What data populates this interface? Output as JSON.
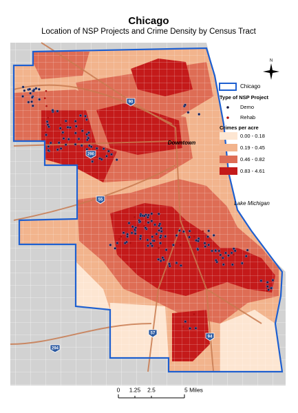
{
  "header": {
    "title": "Chicago",
    "subtitle": "Location of NSP Projects and Crime Density by Census Tract"
  },
  "legend": {
    "boundary": "Chicago",
    "project_title": "Type of NSP Project",
    "projects": [
      "Demo",
      "Rehab"
    ],
    "crime_title": "Crimes per acre",
    "crime_classes": [
      "0.00 - 0.18",
      "0.19 - 0.45",
      "0.46 - 0.82",
      "0.83 - 4.61"
    ]
  },
  "map_labels": {
    "downtown": "Downtown",
    "lake": "Lake Michigan",
    "north": "N",
    "highways": [
      "90",
      "290",
      "55",
      "57",
      "94",
      "294"
    ]
  },
  "scale_bar": [
    "0",
    "1.25",
    "2.5",
    "5 Miles"
  ]
}
